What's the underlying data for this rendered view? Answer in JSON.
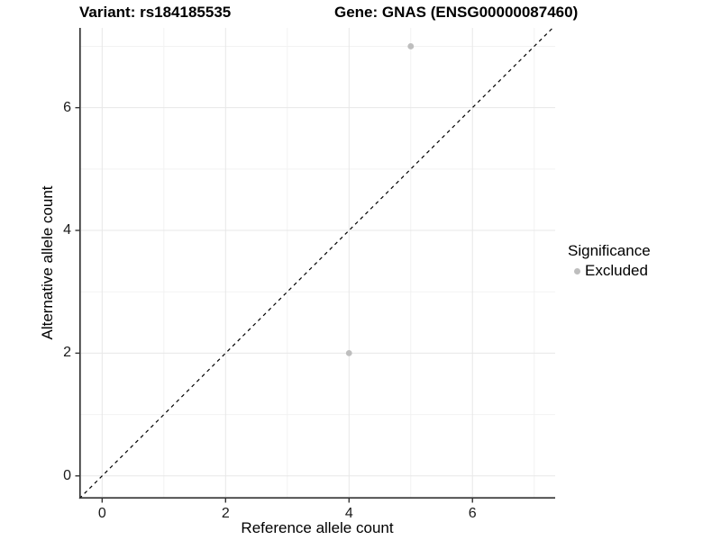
{
  "title": {
    "variant": "Variant: rs184185535",
    "gene": "Gene: GNAS (ENSG00000087460)"
  },
  "legend": {
    "title": "Significance",
    "items": [
      {
        "label": "Excluded",
        "color": "#bebebe"
      }
    ]
  },
  "chart_data": {
    "type": "scatter",
    "title": "Variant: rs184185535   Gene: GNAS (ENSG00000087460)",
    "xlabel": "Reference allele count",
    "ylabel": "Alternative allele count",
    "x_ticks": [
      0,
      2,
      4,
      6
    ],
    "y_ticks": [
      0,
      2,
      4,
      6
    ],
    "x_minor_breaks": [
      1,
      3,
      5,
      7
    ],
    "y_minor_breaks": [
      1,
      3,
      5,
      7
    ],
    "xlim": [
      -0.37,
      7.34
    ],
    "ylim": [
      -0.37,
      7.3
    ],
    "series": [
      {
        "name": "Excluded",
        "color": "#bebebe",
        "points": [
          {
            "x": 5,
            "y": 7
          },
          {
            "x": 4,
            "y": 2
          }
        ]
      }
    ],
    "reference_line": {
      "slope": 1,
      "intercept": 0,
      "style": "dashed",
      "color": "#000000"
    },
    "grid": "on",
    "grid_major_color": "#e7e7e7",
    "grid_minor_color": "#f2f2f2",
    "axis_line_color": "#333333",
    "point_radius": 3.4,
    "legend_position": "right"
  }
}
